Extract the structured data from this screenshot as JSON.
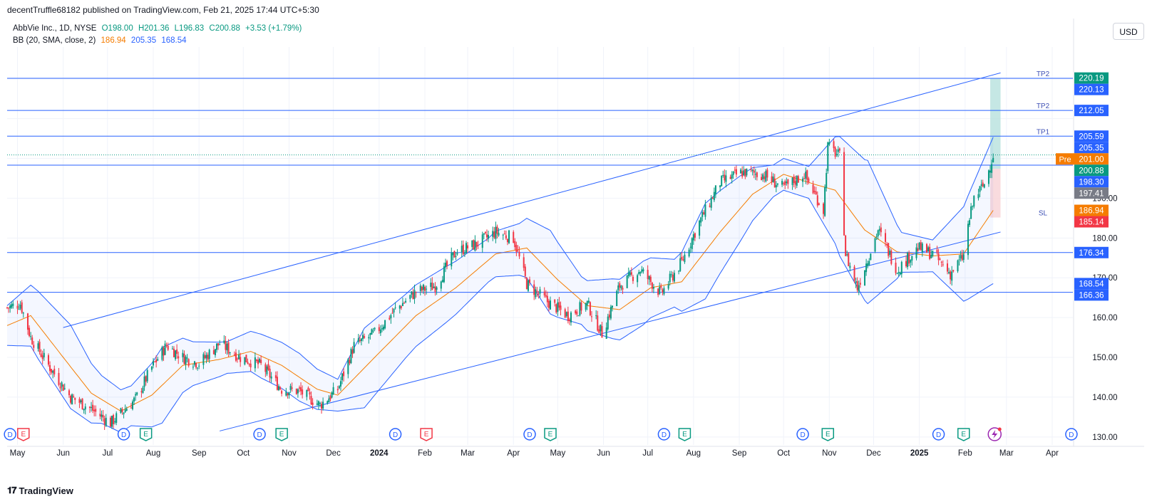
{
  "header": {
    "published": "decentTruffle68182 published on TradingView.com, Feb 21, 2025 17:44 UTC+5:30"
  },
  "legend": {
    "symbol": "AbbVie Inc., 1D, NYSE",
    "open": "O198.00",
    "high": "H201.36",
    "low": "L196.83",
    "close": "C200.88",
    "change": "+3.53 (+1.79%)",
    "bb_label": "BB (20, SMA, close, 2)",
    "bb_basis": "186.94",
    "bb_upper": "205.35",
    "bb_lower": "168.54"
  },
  "currency_button": "USD",
  "footer": {
    "brand": "TradingView"
  },
  "colors": {
    "up": "#089981",
    "down": "#f23645",
    "basis": "#f57c00",
    "band": "#2962ff",
    "hline": "#2962ff",
    "target_zone": "#b2dfdb",
    "stop_zone": "#f8d7da"
  },
  "chart_data": {
    "type": "candlestick",
    "y_axis": {
      "ticks": [
        "130.00",
        "140.00",
        "150.00",
        "160.00",
        "170.00",
        "180.00",
        "190.00"
      ],
      "ylim": [
        128,
        228
      ]
    },
    "x_axis": {
      "ticks": [
        "May",
        "Jun",
        "Jul",
        "Aug",
        "Sep",
        "Oct",
        "Nov",
        "Dec",
        "2024",
        "Feb",
        "Mar",
        "Apr",
        "May",
        "Jun",
        "Jul",
        "Aug",
        "Sep",
        "Oct",
        "Nov",
        "Dec",
        "2025",
        "Feb",
        "Mar",
        "Apr"
      ],
      "range": [
        "2023-04-24",
        "2025-04-15"
      ]
    },
    "price_labels": [
      {
        "value": 220.19,
        "text": "220.19",
        "color": "#089981"
      },
      {
        "value": 220.13,
        "text": "220.13",
        "color": "#2962ff"
      },
      {
        "value": 212.05,
        "text": "212.05",
        "color": "#2962ff"
      },
      {
        "value": 205.59,
        "text": "205.59",
        "color": "#2962ff"
      },
      {
        "value": 205.35,
        "text": "205.35",
        "color": "#2962ff"
      },
      {
        "value": 201.0,
        "text": "201.00",
        "color": "#f57c00",
        "tag": "Pre"
      },
      {
        "value": 200.88,
        "text": "200.88",
        "color": "#089981"
      },
      {
        "value": 198.3,
        "text": "198.30",
        "color": "#2962ff"
      },
      {
        "value": 197.41,
        "text": "197.41",
        "color": "#787b86"
      },
      {
        "value": 186.94,
        "text": "186.94",
        "color": "#f57c00"
      },
      {
        "value": 185.14,
        "text": "185.14",
        "color": "#f23645"
      },
      {
        "value": 176.34,
        "text": "176.34",
        "color": "#2962ff"
      },
      {
        "value": 168.54,
        "text": "168.54",
        "color": "#2962ff"
      },
      {
        "value": 166.36,
        "text": "166.36",
        "color": "#2962ff"
      }
    ],
    "horizontal_lines": [
      220.13,
      212.05,
      205.59,
      198.3,
      176.34,
      166.36
    ],
    "line_labels": [
      {
        "value": 220.13,
        "text": "TP2"
      },
      {
        "value": 212.05,
        "text": "TP2"
      },
      {
        "value": 205.59,
        "text": "TP1"
      },
      {
        "value": 185.14,
        "text": "SL"
      }
    ],
    "channel": {
      "upper": [
        {
          "date": "2023-06-01",
          "price": 157.5
        },
        {
          "date": "2025-02-25",
          "price": 221.5
        }
      ],
      "lower": [
        {
          "date": "2023-09-15",
          "price": 131.5
        },
        {
          "date": "2025-02-25",
          "price": 181.5
        }
      ]
    },
    "position": {
      "start": "2025-02-18",
      "end": "2025-02-25",
      "entry": 197.41,
      "target": 220.19,
      "stop": 185.14
    },
    "price_path": [
      {
        "date": "2023-04-24",
        "close": 162.5
      },
      {
        "date": "2023-05-03",
        "close": 163.5
      },
      {
        "date": "2023-05-10",
        "close": 155.0
      },
      {
        "date": "2023-05-22",
        "close": 148.0
      },
      {
        "date": "2023-06-06",
        "close": 140.0
      },
      {
        "date": "2023-06-20",
        "close": 137.0
      },
      {
        "date": "2023-07-03",
        "close": 133.5
      },
      {
        "date": "2023-07-20",
        "close": 139.5
      },
      {
        "date": "2023-07-31",
        "close": 147.5
      },
      {
        "date": "2023-08-10",
        "close": 153.0
      },
      {
        "date": "2023-08-21",
        "close": 150.0
      },
      {
        "date": "2023-09-01",
        "close": 148.5
      },
      {
        "date": "2023-09-15",
        "close": 153.5
      },
      {
        "date": "2023-09-29",
        "close": 150.0
      },
      {
        "date": "2023-10-13",
        "close": 148.0
      },
      {
        "date": "2023-10-27",
        "close": 142.0
      },
      {
        "date": "2023-11-08",
        "close": 141.5
      },
      {
        "date": "2023-11-22",
        "close": 138.0
      },
      {
        "date": "2023-12-04",
        "close": 142.0
      },
      {
        "date": "2023-12-15",
        "close": 153.0
      },
      {
        "date": "2023-12-29",
        "close": 156.0
      },
      {
        "date": "2024-01-12",
        "close": 162.0
      },
      {
        "date": "2024-01-26",
        "close": 166.5
      },
      {
        "date": "2024-02-08",
        "close": 168.0
      },
      {
        "date": "2024-02-22",
        "close": 176.5
      },
      {
        "date": "2024-03-07",
        "close": 178.5
      },
      {
        "date": "2024-03-20",
        "close": 181.5
      },
      {
        "date": "2024-04-01",
        "close": 180.0
      },
      {
        "date": "2024-04-10",
        "close": 168.5
      },
      {
        "date": "2024-04-24",
        "close": 164.0
      },
      {
        "date": "2024-05-08",
        "close": 160.5
      },
      {
        "date": "2024-05-21",
        "close": 163.5
      },
      {
        "date": "2024-05-31",
        "close": 156.0
      },
      {
        "date": "2024-06-12",
        "close": 168.0
      },
      {
        "date": "2024-06-26",
        "close": 172.0
      },
      {
        "date": "2024-07-10",
        "close": 166.0
      },
      {
        "date": "2024-07-24",
        "close": 174.0
      },
      {
        "date": "2024-08-05",
        "close": 184.0
      },
      {
        "date": "2024-08-19",
        "close": 194.0
      },
      {
        "date": "2024-09-03",
        "close": 196.5
      },
      {
        "date": "2024-09-17",
        "close": 196.0
      },
      {
        "date": "2024-10-01",
        "close": 192.5
      },
      {
        "date": "2024-10-15",
        "close": 196.0
      },
      {
        "date": "2024-10-28",
        "close": 187.0
      },
      {
        "date": "2024-10-31",
        "close": 203.0
      },
      {
        "date": "2024-11-08",
        "close": 200.5
      },
      {
        "date": "2024-11-12",
        "close": 176.0
      },
      {
        "date": "2024-11-20",
        "close": 167.5
      },
      {
        "date": "2024-12-04",
        "close": 182.0
      },
      {
        "date": "2024-12-17",
        "close": 172.0
      },
      {
        "date": "2024-12-31",
        "close": 177.5
      },
      {
        "date": "2025-01-10",
        "close": 176.0
      },
      {
        "date": "2025-01-22",
        "close": 171.0
      },
      {
        "date": "2025-01-31",
        "close": 175.5
      },
      {
        "date": "2025-02-03",
        "close": 183.0
      },
      {
        "date": "2025-02-07",
        "close": 190.0
      },
      {
        "date": "2025-02-14",
        "close": 193.5
      },
      {
        "date": "2025-02-20",
        "close": 200.88
      }
    ],
    "bb_basis_path": [
      {
        "date": "2023-04-24",
        "value": 158.0
      },
      {
        "date": "2023-05-10",
        "value": 160.5
      },
      {
        "date": "2023-06-01",
        "value": 150.0
      },
      {
        "date": "2023-06-20",
        "value": 141.0
      },
      {
        "date": "2023-07-10",
        "value": 136.5
      },
      {
        "date": "2023-07-31",
        "value": 140.5
      },
      {
        "date": "2023-08-21",
        "value": 148.0
      },
      {
        "date": "2023-09-15",
        "value": 149.5
      },
      {
        "date": "2023-10-06",
        "value": 151.5
      },
      {
        "date": "2023-10-27",
        "value": 148.0
      },
      {
        "date": "2023-11-20",
        "value": 142.0
      },
      {
        "date": "2023-12-04",
        "value": 140.5
      },
      {
        "date": "2023-12-29",
        "value": 150.0
      },
      {
        "date": "2024-01-26",
        "value": 160.5
      },
      {
        "date": "2024-02-22",
        "value": 167.5
      },
      {
        "date": "2024-03-20",
        "value": 176.0
      },
      {
        "date": "2024-04-10",
        "value": 177.5
      },
      {
        "date": "2024-05-01",
        "value": 169.5
      },
      {
        "date": "2024-05-21",
        "value": 163.0
      },
      {
        "date": "2024-06-12",
        "value": 162.0
      },
      {
        "date": "2024-07-03",
        "value": 167.5
      },
      {
        "date": "2024-07-24",
        "value": 169.0
      },
      {
        "date": "2024-08-19",
        "value": 181.5
      },
      {
        "date": "2024-09-10",
        "value": 191.0
      },
      {
        "date": "2024-10-01",
        "value": 196.0
      },
      {
        "date": "2024-10-22",
        "value": 193.5
      },
      {
        "date": "2024-11-05",
        "value": 192.0
      },
      {
        "date": "2024-11-25",
        "value": 182.0
      },
      {
        "date": "2024-12-17",
        "value": 176.5
      },
      {
        "date": "2025-01-10",
        "value": 175.5
      },
      {
        "date": "2025-01-31",
        "value": 176.0
      },
      {
        "date": "2025-02-20",
        "value": 186.94
      }
    ],
    "bb_width_path": [
      {
        "date": "2023-04-24",
        "value": 5.0
      },
      {
        "date": "2023-05-15",
        "value": 8.5
      },
      {
        "date": "2023-06-06",
        "value": 10.5
      },
      {
        "date": "2023-06-27",
        "value": 6.0
      },
      {
        "date": "2023-07-17",
        "value": 5.0
      },
      {
        "date": "2023-08-07",
        "value": 9.5
      },
      {
        "date": "2023-08-28",
        "value": 5.5
      },
      {
        "date": "2023-09-20",
        "value": 4.0
      },
      {
        "date": "2023-10-13",
        "value": 5.5
      },
      {
        "date": "2023-11-08",
        "value": 6.0
      },
      {
        "date": "2023-12-04",
        "value": 4.0
      },
      {
        "date": "2023-12-22",
        "value": 10.0
      },
      {
        "date": "2024-01-19",
        "value": 8.0
      },
      {
        "date": "2024-02-16",
        "value": 7.0
      },
      {
        "date": "2024-03-15",
        "value": 5.5
      },
      {
        "date": "2024-04-05",
        "value": 6.5
      },
      {
        "date": "2024-04-26",
        "value": 10.5
      },
      {
        "date": "2024-05-17",
        "value": 6.0
      },
      {
        "date": "2024-06-07",
        "value": 7.5
      },
      {
        "date": "2024-06-28",
        "value": 8.0
      },
      {
        "date": "2024-07-19",
        "value": 6.0
      },
      {
        "date": "2024-08-09",
        "value": 12.0
      },
      {
        "date": "2024-09-03",
        "value": 8.0
      },
      {
        "date": "2024-09-24",
        "value": 4.0
      },
      {
        "date": "2024-10-18",
        "value": 4.0
      },
      {
        "date": "2024-11-08",
        "value": 15.0
      },
      {
        "date": "2024-11-27",
        "value": 18.0
      },
      {
        "date": "2024-12-20",
        "value": 5.0
      },
      {
        "date": "2025-01-10",
        "value": 4.0
      },
      {
        "date": "2025-02-03",
        "value": 13.0
      },
      {
        "date": "2025-02-20",
        "value": 18.4
      }
    ],
    "events": [
      {
        "date": "2023-04-26",
        "kind": "D"
      },
      {
        "date": "2023-05-05",
        "kind": "E"
      },
      {
        "date": "2023-07-12",
        "kind": "D"
      },
      {
        "date": "2023-07-27",
        "kind": "E"
      },
      {
        "date": "2023-10-12",
        "kind": "D"
      },
      {
        "date": "2023-10-27",
        "kind": "E"
      },
      {
        "date": "2024-01-12",
        "kind": "D"
      },
      {
        "date": "2024-02-02",
        "kind": "E"
      },
      {
        "date": "2024-04-12",
        "kind": "D"
      },
      {
        "date": "2024-04-26",
        "kind": "E"
      },
      {
        "date": "2024-07-12",
        "kind": "D"
      },
      {
        "date": "2024-07-26",
        "kind": "E"
      },
      {
        "date": "2024-10-14",
        "kind": "D"
      },
      {
        "date": "2024-10-31",
        "kind": "E"
      },
      {
        "date": "2025-01-14",
        "kind": "D"
      },
      {
        "date": "2025-01-31",
        "kind": "E"
      },
      {
        "date": "2025-02-21",
        "kind": "alert"
      },
      {
        "date": "2025-04-14",
        "kind": "D"
      }
    ]
  }
}
